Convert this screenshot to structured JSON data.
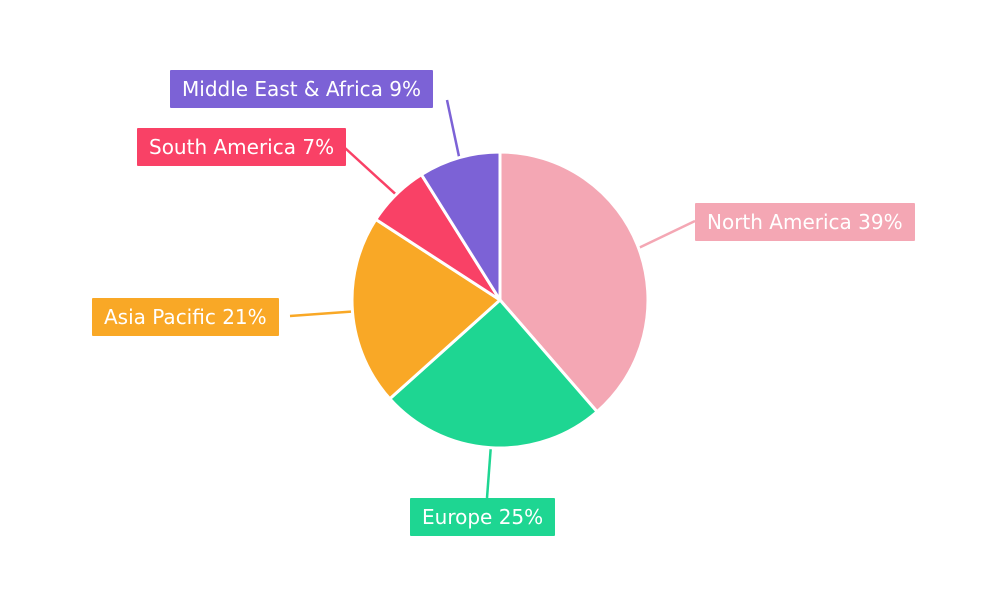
{
  "chart_data": {
    "type": "pie",
    "title": "",
    "direction": "clockwise",
    "start_angle_deg": 0,
    "legend_position": "none",
    "background": "#ffffff",
    "label_text_color": "#ffffff",
    "slices": [
      {
        "label": "North America",
        "value": 39,
        "color": "#f4a7b4",
        "label_text": "North America 39%"
      },
      {
        "label": "Europe",
        "value": 25,
        "color": "#1ed692",
        "label_text": "Europe 25%"
      },
      {
        "label": "Asia Pacific",
        "value": 21,
        "color": "#f9a826",
        "label_text": "Asia Pacific 21%"
      },
      {
        "label": "South America",
        "value": 7,
        "color": "#f94166",
        "label_text": "South America 7%"
      },
      {
        "label": "Middle East & Africa",
        "value": 9,
        "color": "#7c62d6",
        "label_text": "Middle East & Africa 9%"
      }
    ]
  }
}
